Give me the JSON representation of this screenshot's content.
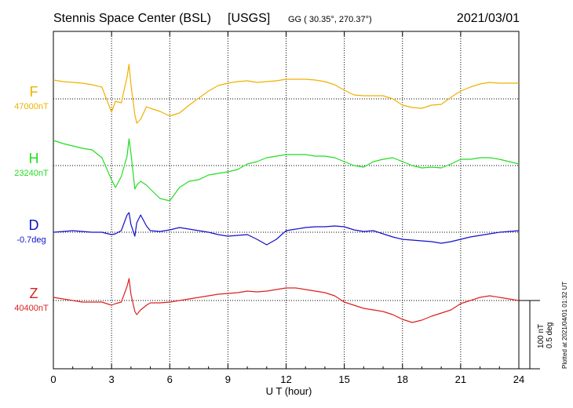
{
  "header": {
    "station": "Stennis Space Center (BSL)",
    "agency": "[USGS]",
    "coords": "GG ( 30.35°, 270.37°)",
    "date": "2021/03/01"
  },
  "footer_note": "Plotted at 2021/04/01 01:32 UT",
  "chart_data": {
    "type": "line",
    "xlabel": "U T (hour)",
    "xlim": [
      0,
      24
    ],
    "xticks": [
      "0",
      "3",
      "6",
      "9",
      "12",
      "15",
      "18",
      "21",
      "24"
    ],
    "grid": true,
    "scale_bar": {
      "line1": "100 nT",
      "line2": "0.5 deg"
    },
    "x": [
      0,
      0.5,
      1,
      1.5,
      2,
      2.5,
      3,
      3.2,
      3.5,
      3.8,
      3.9,
      4.0,
      4.2,
      4.3,
      4.5,
      4.8,
      5,
      5.5,
      6,
      6.5,
      7,
      7.5,
      8,
      8.5,
      9,
      9.5,
      10,
      10.5,
      11,
      11.5,
      12,
      12.5,
      13,
      13.5,
      14,
      14.5,
      15,
      15.5,
      16,
      16.5,
      17,
      17.5,
      18,
      18.5,
      19,
      19.5,
      20,
      20.5,
      21,
      21.5,
      22,
      22.5,
      23,
      23.5,
      24
    ],
    "series": [
      {
        "name": "F",
        "baseline_label": "47000nT",
        "color": "#f0b000",
        "values": [
          24,
          22,
          21,
          20,
          18,
          15,
          -17,
          -3,
          -5,
          28,
          44,
          18,
          -20,
          -31,
          -26,
          -10,
          -12,
          -16,
          -22,
          -18,
          -8,
          1,
          10,
          17,
          20,
          22,
          23,
          21,
          22,
          23,
          25,
          25,
          25,
          24,
          22,
          18,
          11,
          5,
          4,
          4,
          4,
          0,
          -8,
          -11,
          -12,
          -8,
          -7,
          2,
          10,
          15,
          19,
          21,
          20,
          20,
          20
        ]
      },
      {
        "name": "H",
        "baseline_label": "23240nT",
        "color": "#22dd22",
        "values": [
          32,
          28,
          25,
          22,
          20,
          10,
          -18,
          -28,
          -14,
          12,
          34,
          16,
          -30,
          -25,
          -20,
          -25,
          -30,
          -42,
          -45,
          -28,
          -20,
          -18,
          -12,
          -10,
          -8,
          -5,
          2,
          5,
          10,
          12,
          14,
          14,
          14,
          12,
          12,
          10,
          5,
          0,
          -2,
          5,
          8,
          10,
          5,
          0,
          -3,
          -2,
          -3,
          2,
          8,
          8,
          10,
          10,
          8,
          5,
          2
        ]
      },
      {
        "name": "D",
        "baseline_label": "-0.7deg",
        "color": "#1010cc",
        "values": [
          0,
          1,
          2,
          1,
          0,
          0,
          -3,
          -2,
          2,
          22,
          25,
          10,
          -5,
          12,
          22,
          8,
          2,
          1,
          3,
          6,
          4,
          2,
          0,
          -3,
          -5,
          -4,
          -3,
          -9,
          -16,
          -9,
          2,
          4,
          6,
          7,
          7,
          8,
          7,
          3,
          1,
          2,
          -2,
          -6,
          -9,
          -10,
          -11,
          -12,
          -14,
          -12,
          -9,
          -6,
          -4,
          -2,
          0,
          1,
          2
        ]
      },
      {
        "name": "Z",
        "baseline_label": "40400nT",
        "color": "#dd2020",
        "values": [
          4,
          2,
          0,
          -2,
          -2,
          -2,
          -6,
          -4,
          -2,
          18,
          28,
          8,
          -14,
          -18,
          -12,
          -6,
          -3,
          -3,
          -2,
          0,
          2,
          4,
          6,
          8,
          9,
          10,
          12,
          11,
          12,
          14,
          16,
          16,
          14,
          12,
          10,
          6,
          -2,
          -6,
          -10,
          -12,
          -14,
          -18,
          -24,
          -28,
          -25,
          -20,
          -16,
          -12,
          -4,
          0,
          4,
          6,
          4,
          2,
          0
        ]
      }
    ]
  }
}
